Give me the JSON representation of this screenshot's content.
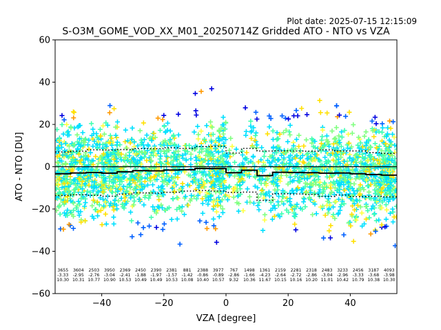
{
  "header": {
    "plot_date": "Plot date: 2025-07-15 12:15:09"
  },
  "chart_data": {
    "type": "scatter",
    "title": "S-O3M_GOME_VOD_XX_M01_20250714Z Gridded ATO - NTO vs VZA",
    "xlabel": "VZA [degree]",
    "ylabel": "ATO - NTO [DU]",
    "xlim": [
      -55,
      55
    ],
    "ylim": [
      -60,
      60
    ],
    "xticks": [
      -40,
      -20,
      0,
      20,
      40
    ],
    "xtick_labels": [
      "−40",
      "−20",
      "0",
      "20",
      "40"
    ],
    "yticks": [
      -60,
      -40,
      -20,
      0,
      20,
      40,
      60
    ],
    "ytick_labels": [
      "−60",
      "−40",
      "−20",
      "0",
      "20",
      "40",
      "60"
    ],
    "grid": false,
    "legend": "none",
    "point_colors": [
      "#00e0ff",
      "#40ffb0",
      "#80ff80",
      "#ffe000",
      "#ffff40",
      "#0060ff",
      "#0000e0",
      "#ff9900"
    ],
    "bins": {
      "centers": [
        -52.5,
        -47.5,
        -42.5,
        -37.5,
        -32.5,
        -27.5,
        -22.5,
        -17.5,
        -12.5,
        -7.5,
        -2.5,
        2.5,
        7.5,
        12.5,
        17.5,
        22.5,
        27.5,
        32.5,
        37.5,
        42.5,
        47.5,
        52.5
      ],
      "counts": [
        "3655",
        "3604",
        "2503",
        "3950",
        "2369",
        "2450",
        "2390",
        "2381",
        "881",
        "2388",
        "3977",
        "767",
        "1498",
        "1361",
        "2159",
        "2281",
        "2318",
        "2483",
        "3233",
        "2456",
        "3187",
        "4093"
      ],
      "means": [
        "-3.33",
        "-2.95",
        "-2.76",
        "-3.04",
        "-2.41",
        "-1.88",
        "-1.97",
        "-1.57",
        "-1.42",
        "-0.86",
        "-0.89",
        "-2.86",
        "-1.66",
        "-4.23",
        "-2.64",
        "-2.72",
        "-2.86",
        "-3.04",
        "-2.96",
        "-3.33",
        "-3.68",
        "-3.98"
      ],
      "stds": [
        "10.30",
        "10.31",
        "10.77",
        "10.90",
        "10.53",
        "10.49",
        "10.49",
        "10.53",
        "10.08",
        "10.40",
        "10.57",
        "9.32",
        "10.36",
        "11.67",
        "10.15",
        "10.16",
        "10.20",
        "11.01",
        "10.42",
        "10.79",
        "10.38",
        "10.30"
      ]
    }
  }
}
